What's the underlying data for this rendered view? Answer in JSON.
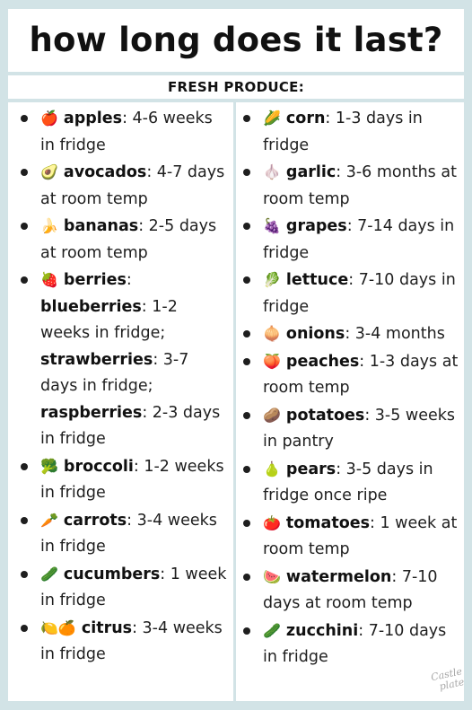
{
  "title": "how long does it last?",
  "subtitle": "FRESH PRODUCE:",
  "left_items": [
    {
      "icon": "apple-icon",
      "emoji": "🍎",
      "name": "apples",
      "text": ": 4-6 weeks in fridge"
    },
    {
      "icon": "avocado-icon",
      "emoji": "🥑",
      "name": "avocados",
      "text": ": 4-7 days at room temp"
    },
    {
      "icon": "banana-icon",
      "emoji": "🍌",
      "name": "bananas",
      "text": ": 2-5 days at room temp"
    },
    {
      "icon": "strawberry-icon",
      "emoji": "🍓",
      "name": "berries",
      "text": ":",
      "subs": [
        {
          "name": "blueberries",
          "text": ": 1-2 weeks in fridge;"
        },
        {
          "name": "strawberries",
          "text": ": 3-7 days in fridge;"
        },
        {
          "name": "raspberries",
          "text": ": 2-3 days in fridge"
        }
      ]
    },
    {
      "icon": "broccoli-icon",
      "emoji": "🥦",
      "name": "broccoli",
      "text": ": 1-2 weeks in fridge"
    },
    {
      "icon": "carrot-icon",
      "emoji": "🥕",
      "name": "carrots",
      "text": ": 3-4 weeks in fridge"
    },
    {
      "icon": "cucumber-icon",
      "emoji": "🥒",
      "name": "cucumbers",
      "text": ": 1 week in fridge"
    },
    {
      "icon": "citrus-icon",
      "emoji": "🍋🍊",
      "name": "citrus",
      "text": ": 3-4 weeks in fridge"
    }
  ],
  "right_items": [
    {
      "icon": "corn-icon",
      "emoji": "🌽",
      "name": "corn",
      "text": ": 1-3 days in fridge"
    },
    {
      "icon": "garlic-icon",
      "emoji": "🧄",
      "name": "garlic",
      "text": ": 3-6 months at room temp"
    },
    {
      "icon": "grapes-icon",
      "emoji": "🍇",
      "name": "grapes",
      "text": ": 7-14 days in fridge"
    },
    {
      "icon": "lettuce-icon",
      "emoji": "🥬",
      "name": "lettuce",
      "text": ": 7-10 days in fridge"
    },
    {
      "icon": "onion-icon",
      "emoji": "🧅",
      "name": "onions",
      "text": ": 3-4 months"
    },
    {
      "icon": "peach-icon",
      "emoji": "🍑",
      "name": "peaches",
      "text": ": 1-3 days at room temp"
    },
    {
      "icon": "potato-icon",
      "emoji": "🥔",
      "name": "potatoes",
      "text": ": 3-5 weeks in pantry"
    },
    {
      "icon": "pear-icon",
      "emoji": "🍐",
      "name": "pears",
      "text": ": 3-5 days in fridge once ripe"
    },
    {
      "icon": "tomato-icon",
      "emoji": "🍅",
      "name": "tomatoes",
      "text": ": 1 week at room temp"
    },
    {
      "icon": "watermelon-icon",
      "emoji": "🍉",
      "name": "watermelon",
      "text": ": 7-10 days at room temp"
    },
    {
      "icon": "zucchini-icon",
      "emoji": "🥒",
      "name": "zucchini",
      "text": ": 7-10 days in fridge"
    }
  ],
  "signature": "Castle Plate",
  "colors": {
    "background": "#d2e3e6",
    "panel": "#ffffff",
    "text": "#1e1e1e"
  }
}
